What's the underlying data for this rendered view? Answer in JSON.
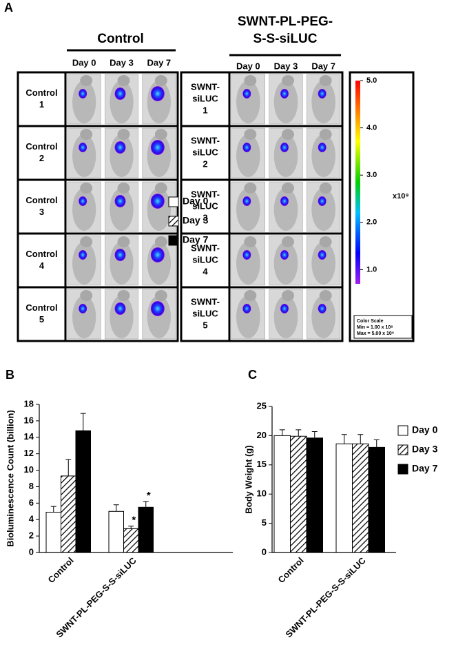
{
  "panel_a": {
    "label": "A",
    "groups": [
      {
        "title": [
          "Control"
        ],
        "days": [
          "Day 0",
          "Day 3",
          "Day 7"
        ],
        "rows": [
          [
            "Control",
            "1"
          ],
          [
            "Control",
            "2"
          ],
          [
            "Control",
            "3"
          ],
          [
            "Control",
            "4"
          ],
          [
            "Control",
            "5"
          ]
        ]
      },
      {
        "title": [
          "SWNT-PL-PEG-",
          "S-S-siLUC"
        ],
        "days": [
          "Day 0",
          "Day 3",
          "Day 7"
        ],
        "rows": [
          [
            "SWNT-",
            "siLUC",
            "1"
          ],
          [
            "SWNT-",
            "siLUC",
            "2"
          ],
          [
            "SWNT-",
            "siLUC",
            "3"
          ],
          [
            "SWNT-",
            "siLUC",
            "4"
          ],
          [
            "SWNT-",
            "siLUC",
            "5"
          ]
        ]
      }
    ],
    "color_scale": {
      "lim": [
        0.7,
        5
      ],
      "ticks": [
        {
          "value": 5,
          "label": "5.0"
        },
        {
          "value": 4,
          "label": "4.0"
        },
        {
          "value": 3,
          "label": "3.0"
        },
        {
          "value": 2,
          "label": "2.0"
        },
        {
          "value": 1,
          "label": "1.0"
        }
      ],
      "unit": "x10⁹",
      "legend": [
        "Color Scale",
        "Min = 1.00 x 10⁸",
        "Max = 5.00 x 10⁹"
      ]
    }
  },
  "chart_data": [
    {
      "type": "bar",
      "panel": "B",
      "ylabel": "Bioluminescence Count (billion)",
      "categories": [
        "Control",
        "SWNT-PL-PEG-S-S-siLUC"
      ],
      "series": [
        {
          "name": "Day 0",
          "color": "#ffffff",
          "values": [
            4.9,
            5.0
          ],
          "errors": [
            0.7,
            0.8
          ]
        },
        {
          "name": "Day 3",
          "color": "#ffffff",
          "hatch": true,
          "values": [
            9.3,
            2.9
          ],
          "errors": [
            2.0,
            0.3
          ]
        },
        {
          "name": "Day 7",
          "color": "#000000",
          "values": [
            14.8,
            5.5
          ],
          "errors": [
            2.1,
            0.7
          ]
        }
      ],
      "annotations": [
        {
          "text": "*",
          "series": 1,
          "category": 1
        },
        {
          "text": "*",
          "series": 2,
          "category": 1
        }
      ],
      "ylim": [
        0,
        18
      ],
      "yticks": [
        0,
        2,
        4,
        6,
        8,
        10,
        12,
        14,
        16,
        18
      ]
    },
    {
      "type": "bar",
      "panel": "C",
      "ylabel": "Body Weight (g)",
      "categories": [
        "Control",
        "SWNT-PL-PEG-S-S-siLUC"
      ],
      "series": [
        {
          "name": "Day 0",
          "color": "#ffffff",
          "values": [
            20.0,
            18.6
          ],
          "errors": [
            1.0,
            1.6
          ]
        },
        {
          "name": "Day 3",
          "color": "#ffffff",
          "hatch": true,
          "values": [
            19.9,
            18.6
          ],
          "errors": [
            1.1,
            1.6
          ]
        },
        {
          "name": "Day 7",
          "color": "#000000",
          "values": [
            19.6,
            18.0
          ],
          "errors": [
            1.1,
            1.3
          ]
        }
      ],
      "ylim": [
        0,
        25
      ],
      "yticks": [
        0,
        5,
        10,
        15,
        20,
        25
      ]
    }
  ]
}
